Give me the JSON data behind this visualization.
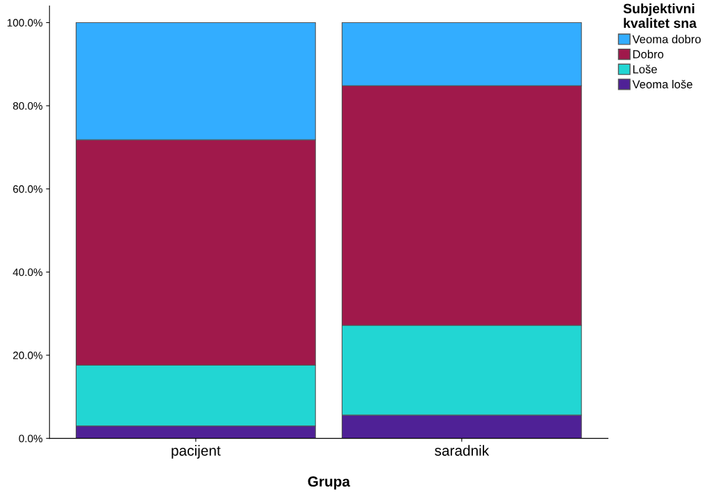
{
  "chart_data": {
    "type": "bar",
    "stacked": true,
    "xlabel": "Grupa",
    "legend_title": "Subjektivni\nkvalitet sna",
    "legend": "top right",
    "grid": false,
    "categories": [
      "pacijent",
      "saradnik"
    ],
    "series": [
      {
        "name": "Veoma loše",
        "color": "#4f2196",
        "values": [
          3.0,
          5.6
        ]
      },
      {
        "name": "Loše",
        "color": "#22d6d3",
        "values": [
          14.6,
          21.6
        ]
      },
      {
        "name": "Dobro",
        "color": "#a0194b",
        "values": [
          54.2,
          57.6
        ]
      },
      {
        "name": "Veoma dobro",
        "color": "#33adff",
        "values": [
          28.2,
          15.2
        ]
      }
    ],
    "ylim": [
      0,
      104
    ],
    "yticks": [
      {
        "value": 0,
        "label": "0.0%"
      },
      {
        "value": 20,
        "label": "20.0%"
      },
      {
        "value": 40,
        "label": "40.0%"
      },
      {
        "value": 60,
        "label": "60.0%"
      },
      {
        "value": 80,
        "label": "80.0%"
      },
      {
        "value": 100,
        "label": "100.0%"
      }
    ]
  }
}
